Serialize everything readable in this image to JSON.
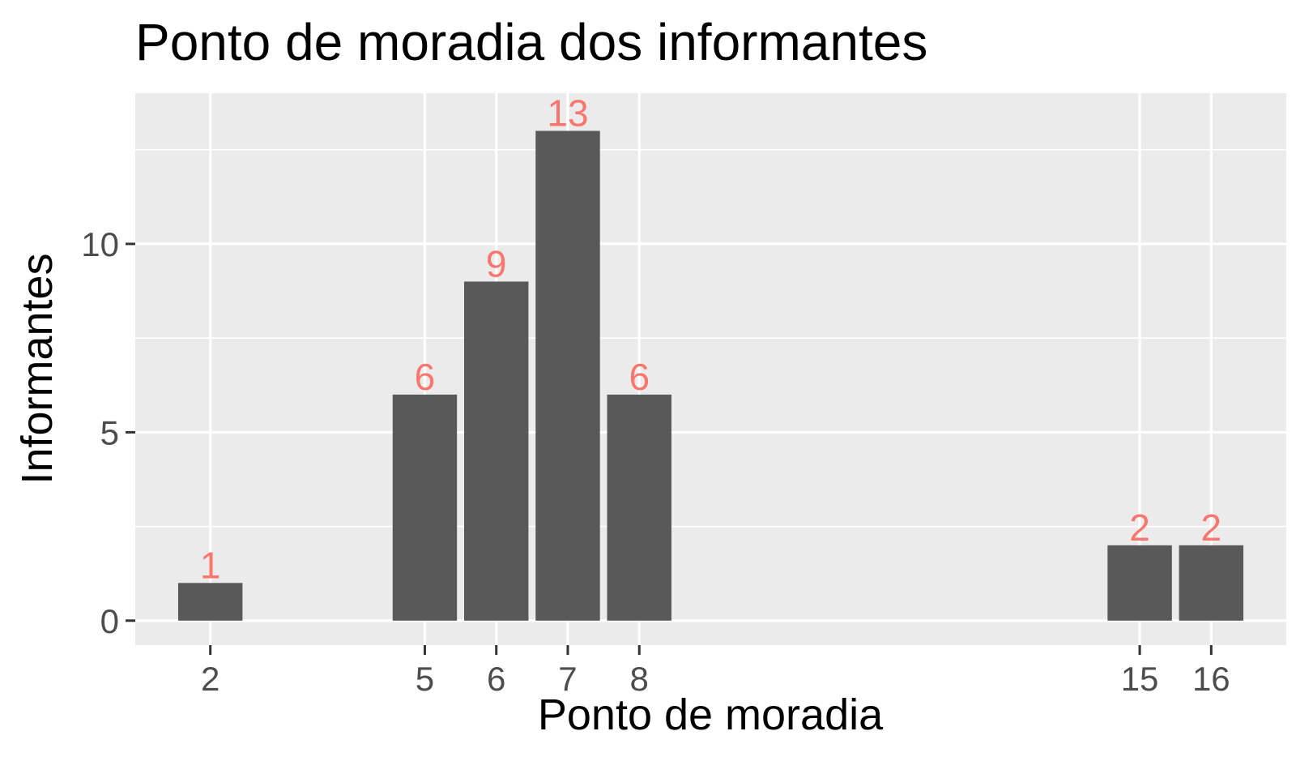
{
  "chart_data": {
    "type": "bar",
    "title": "Ponto de moradia dos informantes",
    "xlabel": "Ponto de moradia",
    "ylabel": "Informantes",
    "x": [
      2,
      5,
      6,
      7,
      8,
      15,
      16
    ],
    "values": [
      1,
      6,
      9,
      13,
      6,
      2,
      2
    ],
    "x_ticks": [
      "2",
      "5",
      "6",
      "7",
      "8",
      "15",
      "16"
    ],
    "y_ticks": [
      "0",
      "5",
      "10"
    ],
    "xlim": [
      0.95,
      17.05
    ],
    "ylim": [
      -0.65,
      14.0
    ],
    "grid": true,
    "bar_color": "#595959",
    "label_color": "#F8766D",
    "panel_color": "#EBEBEB"
  }
}
